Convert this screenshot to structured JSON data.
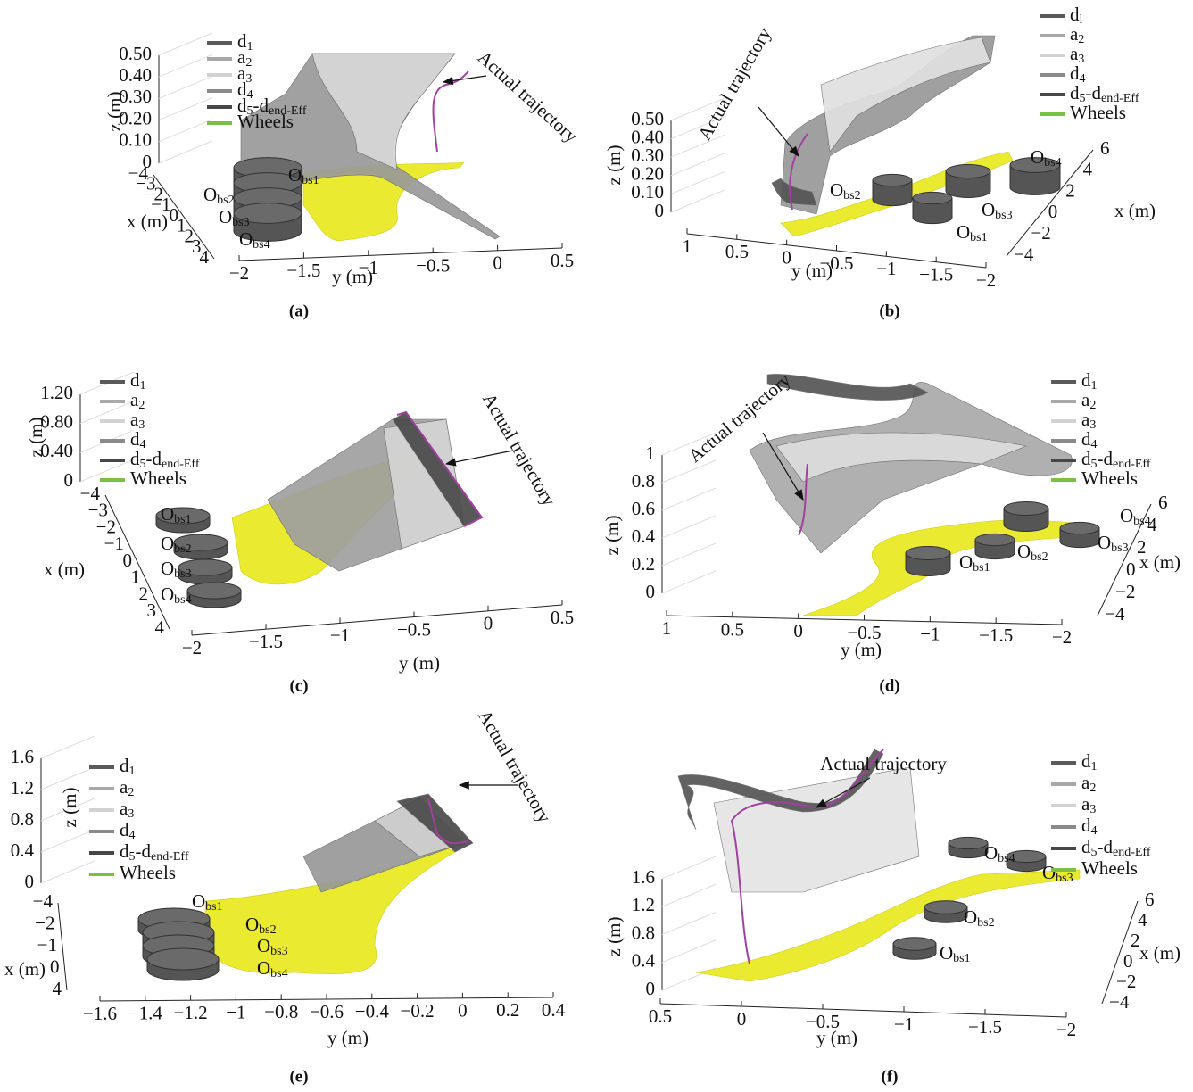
{
  "figure": {
    "panels": [
      {
        "caption": "(a)",
        "z_label": "z (m)",
        "x_label": "x (m)",
        "y_label": "y (m)",
        "z_ticks": [
          "0",
          "0.10",
          "0.20",
          "0.30",
          "0.40",
          "0.50"
        ],
        "x_ticks": [
          "−4",
          "−3",
          "−2",
          "−1",
          "0",
          "1",
          "2",
          "3",
          "4"
        ],
        "y_ticks": [
          "−2",
          "−1.5",
          "−1",
          "−0.5",
          "0",
          "0.5"
        ],
        "legend": [
          [
            "d",
            "1"
          ],
          [
            "a",
            "2"
          ],
          [
            "a",
            "3"
          ],
          [
            "d",
            "4"
          ],
          [
            "d",
            "5",
            "-d",
            "end-Eff"
          ],
          [
            "Wheels"
          ]
        ],
        "obstacles": [
          [
            "O",
            "bs1"
          ],
          [
            "O",
            "bs2"
          ],
          [
            "O",
            "bs3"
          ],
          [
            "O",
            "bs4"
          ]
        ],
        "annotation": "Actual trajectory"
      },
      {
        "caption": "(b)",
        "z_label": "z (m)",
        "x_label": "x (m)",
        "y_label": "y (m)",
        "z_ticks": [
          "0",
          "0.10",
          "0.20",
          "0.30",
          "0.40",
          "0.50"
        ],
        "x_ticks": [
          "−4",
          "−2",
          "0",
          "2",
          "4",
          "6"
        ],
        "y_ticks": [
          "1",
          "0.5",
          "0",
          "−0.5",
          "−1",
          "−1.5",
          "−2"
        ],
        "legend": [
          [
            "d",
            "l"
          ],
          [
            "a",
            "2"
          ],
          [
            "a",
            "3"
          ],
          [
            "d",
            "4"
          ],
          [
            "d",
            "5",
            "-d",
            "end-Eff"
          ],
          [
            "Wheels"
          ]
        ],
        "obstacles": [
          [
            "O",
            "bs4"
          ],
          [
            "O",
            "bs2"
          ],
          [
            "O",
            "bs3"
          ],
          [
            "O",
            "bs1"
          ]
        ],
        "annotation": "Actual trajectory"
      },
      {
        "caption": "(c)",
        "z_label": "z (m)",
        "x_label": "x (m)",
        "y_label": "y (m)",
        "z_ticks": [
          "0",
          "0.40",
          "0.80",
          "1.20"
        ],
        "x_ticks": [
          "−4",
          "−3",
          "−2",
          "−1",
          "0",
          "1",
          "2",
          "3",
          "4"
        ],
        "y_ticks": [
          "−2",
          "−1.5",
          "−1",
          "−0.5",
          "0",
          "0.5"
        ],
        "legend": [
          [
            "d",
            "1"
          ],
          [
            "a",
            "2"
          ],
          [
            "a",
            "3"
          ],
          [
            "d",
            "4"
          ],
          [
            "d",
            "5",
            "-d",
            "end-Eff"
          ],
          [
            "Wheels"
          ]
        ],
        "obstacles": [
          [
            "O",
            "bs1"
          ],
          [
            "O",
            "bs2"
          ],
          [
            "O",
            "bs3"
          ],
          [
            "O",
            "bs4"
          ]
        ],
        "annotation": "Actual trajectory"
      },
      {
        "caption": "(d)",
        "z_label": "z (m)",
        "x_label": "x (m)",
        "y_label": "y (m)",
        "z_ticks": [
          "0",
          "0.2",
          "0.4",
          "0.6",
          "0.8",
          "1"
        ],
        "x_ticks": [
          "−4",
          "−2",
          "0",
          "2",
          "4",
          "6"
        ],
        "y_ticks": [
          "1",
          "0.5",
          "0",
          "−0.5",
          "−1",
          "−1.5",
          "−2"
        ],
        "legend": [
          [
            "d",
            "1"
          ],
          [
            "a",
            "2"
          ],
          [
            "a",
            "3"
          ],
          [
            "d",
            "4"
          ],
          [
            "d",
            "5",
            "-d",
            "end-Eff"
          ],
          [
            "Wheels"
          ]
        ],
        "obstacles": [
          [
            "O",
            "bs4"
          ],
          [
            "O",
            "bs3"
          ],
          [
            "O",
            "bs2"
          ],
          [
            "O",
            "bs1"
          ]
        ],
        "annotation": "Actual trajectory"
      },
      {
        "caption": "(e)",
        "z_label": "z (m)",
        "x_label": "x (m)",
        "y_label": "y (m)",
        "z_ticks": [
          "0",
          "0.4",
          "0.8",
          "1.2",
          "1.6"
        ],
        "x_ticks": [
          "−4",
          "−2",
          "−1",
          "0",
          "4"
        ],
        "y_ticks": [
          "−1.6",
          "−1.4",
          "−1.2",
          "−1",
          "−0.8",
          "−0.6",
          "−0.4",
          "−0.2",
          "0",
          "0.2",
          "0.4"
        ],
        "legend": [
          [
            "d",
            "1"
          ],
          [
            "a",
            "2"
          ],
          [
            "a",
            "3"
          ],
          [
            "d",
            "4"
          ],
          [
            "d",
            "5",
            "-d",
            "end-Eff"
          ],
          [
            "Wheels"
          ]
        ],
        "obstacles": [
          [
            "O",
            "bs1"
          ],
          [
            "O",
            "bs2"
          ],
          [
            "O",
            "bs3"
          ],
          [
            "O",
            "bs4"
          ]
        ],
        "annotation": "Actual trajectory"
      },
      {
        "caption": "(f)",
        "z_label": "z (m)",
        "x_label": "x (m)",
        "y_label": "y (m)",
        "z_ticks": [
          "0",
          "0.4",
          "0.8",
          "1.2",
          "1.6"
        ],
        "x_ticks": [
          "−4",
          "−2",
          "0",
          "2",
          "4",
          "6"
        ],
        "y_ticks": [
          "0.5",
          "0",
          "−0.5",
          "−1",
          "−1.5",
          "−2"
        ],
        "legend": [
          [
            "d",
            "1"
          ],
          [
            "a",
            "2"
          ],
          [
            "a",
            "3"
          ],
          [
            "d",
            "4"
          ],
          [
            "d",
            "5",
            "-d",
            "end-Eff"
          ],
          [
            "Wheels"
          ]
        ],
        "obstacles": [
          [
            "O",
            "bs4"
          ],
          [
            "O",
            "bs3"
          ],
          [
            "O",
            "bs2"
          ],
          [
            "O",
            "bs1"
          ]
        ],
        "annotation": "Actual trajectory"
      }
    ]
  }
}
